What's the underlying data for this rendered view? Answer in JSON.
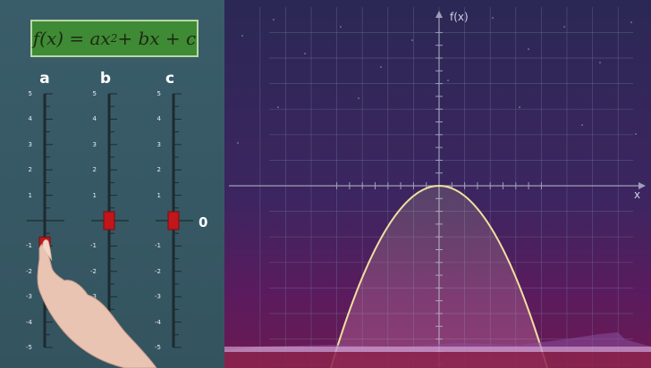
{
  "formula": {
    "prefix": "f(x) = ax",
    "exponent": "2",
    "suffix": " + bx + c"
  },
  "sliders": [
    {
      "id": "a",
      "label": "a",
      "value": -1
    },
    {
      "id": "b",
      "label": "b",
      "value": 0
    },
    {
      "id": "c",
      "label": "c",
      "value": 0
    }
  ],
  "scale_ticks": [
    "5",
    "4",
    "3",
    "2",
    "1",
    "-1",
    "-2",
    "-3",
    "-4",
    "-5"
  ],
  "zero_marker": "0",
  "graph": {
    "y_axis_label": "f(x)",
    "x_axis_label": "x",
    "function": {
      "a": -1,
      "b": 0,
      "c": 0
    }
  },
  "colors": {
    "panel": "#3a5d6a",
    "formula_bg": "#3f8a35",
    "slider_handle": "#c0161c",
    "curve": "#f0dfa0",
    "grid": "#6a6f92"
  }
}
